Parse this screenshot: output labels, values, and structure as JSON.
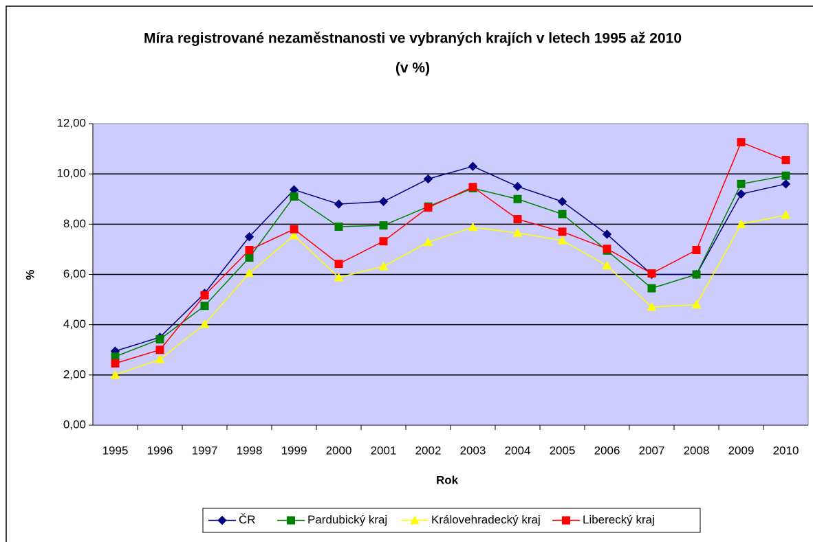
{
  "chart_data": {
    "type": "line",
    "title": "Míra registrované nezaměstnanosti ve vybraných krajích v letech 1995 až 2010",
    "subtitle": "(v %)",
    "x_label": "Rok",
    "y_label": "%",
    "categories": [
      "1995",
      "1996",
      "1997",
      "1998",
      "1999",
      "2000",
      "2001",
      "2002",
      "2003",
      "2004",
      "2005",
      "2006",
      "2007",
      "2008",
      "2009",
      "2010"
    ],
    "series": [
      {
        "name": "ČR",
        "color": "#000080",
        "marker": "diamond",
        "values": [
          2.95,
          3.5,
          5.25,
          7.5,
          9.37,
          8.8,
          8.9,
          9.8,
          10.3,
          9.5,
          8.9,
          7.6,
          6.0,
          6.0,
          9.2,
          9.6
        ]
      },
      {
        "name": "Pardubický kraj",
        "color": "#008000",
        "marker": "square",
        "values": [
          2.73,
          3.42,
          4.75,
          6.67,
          9.1,
          7.9,
          7.95,
          8.7,
          9.43,
          9.0,
          8.4,
          6.95,
          5.45,
          6.0,
          9.6,
          9.93
        ]
      },
      {
        "name": "Královehradecký kraj",
        "color": "#ffff00",
        "marker": "triangle",
        "values": [
          2.0,
          2.62,
          4.02,
          6.05,
          7.55,
          5.88,
          6.32,
          7.28,
          7.88,
          7.65,
          7.35,
          6.35,
          4.7,
          4.8,
          8.0,
          8.36
        ]
      },
      {
        "name": "Liberecký kraj",
        "color": "#ff0000",
        "marker": "square",
        "values": [
          2.46,
          3.0,
          5.17,
          6.97,
          7.8,
          6.42,
          7.32,
          8.66,
          9.48,
          8.2,
          7.7,
          7.02,
          6.04,
          6.97,
          11.26,
          10.55
        ]
      }
    ],
    "ylim": [
      0,
      12
    ],
    "yticks": [
      {
        "value": 0,
        "label": "0,00"
      },
      {
        "value": 2,
        "label": "2,00"
      },
      {
        "value": 4,
        "label": "4,00"
      },
      {
        "value": 6,
        "label": "6,00"
      },
      {
        "value": 8,
        "label": "8,00"
      },
      {
        "value": 10,
        "label": "10,00"
      },
      {
        "value": 12,
        "label": "12,00"
      }
    ],
    "grid": true,
    "legend": "bottom",
    "plot_background": "#ccccff"
  }
}
